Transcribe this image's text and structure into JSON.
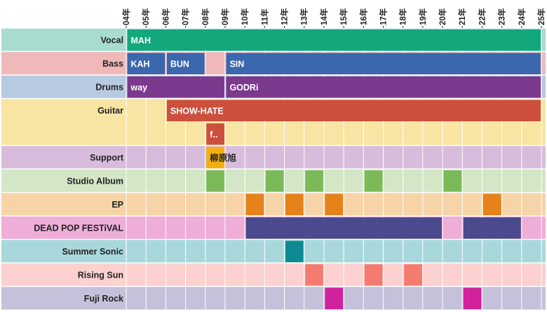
{
  "chart_data": {
    "type": "timeline",
    "title": "",
    "years": [
      "04年",
      "05年",
      "06年",
      "07年",
      "08年",
      "09年",
      "10年",
      "11年",
      "12年",
      "13年",
      "14年",
      "15年",
      "16年",
      "17年",
      "18年",
      "19年",
      "20年",
      "21年",
      "22年",
      "23年",
      "24年",
      "25年"
    ],
    "start_year": 2004,
    "end_year": 2025,
    "rows": [
      {
        "label": "Vocal",
        "bg": "#a8dcd0",
        "bars": [
          {
            "text": "MAH",
            "start": 2004.0,
            "end": 2025.0,
            "color": "#13a87c",
            "text_color": "#ffffff"
          }
        ]
      },
      {
        "label": "Bass",
        "bg": "#efb9b9",
        "bars": [
          {
            "text": "KAH",
            "start": 2004.0,
            "end": 2006.0,
            "color": "#3a67ad",
            "text_color": "#ffffff"
          },
          {
            "text": "BUN",
            "start": 2006.0,
            "end": 2008.0,
            "color": "#3a67ad",
            "text_color": "#ffffff"
          },
          {
            "text": "SIN",
            "start": 2009.0,
            "end": 2025.0,
            "color": "#3a67ad",
            "text_color": "#ffffff"
          }
        ]
      },
      {
        "label": "Drums",
        "bg": "#b8c9e2",
        "bars": [
          {
            "text": "way",
            "start": 2004.0,
            "end": 2009.0,
            "color": "#7b3a8e",
            "text_color": "#ffffff"
          },
          {
            "text": "GODRi",
            "start": 2009.0,
            "end": 2025.0,
            "color": "#7b3a8e",
            "text_color": "#ffffff"
          }
        ]
      },
      {
        "label": "Guitar",
        "bg": "#f8e4a3",
        "height_units": 2,
        "bars": [
          {
            "text": "SHOW-HATE",
            "start": 2006.0,
            "end": 2025.0,
            "color": "#cd4f3d",
            "text_color": "#ffffff",
            "sub": 0
          },
          {
            "text": "f..",
            "start": 2008.0,
            "end": 2009.0,
            "color": "#cd4f3d",
            "text_color": "#ffffff",
            "sub": 1
          }
        ]
      },
      {
        "label": "Support",
        "bg": "#d7bddb",
        "bars": [
          {
            "text": "柳原旭",
            "start": 2008.0,
            "end": 2009.0,
            "color": "#f2b10d",
            "text_color": "#222222"
          }
        ]
      },
      {
        "label": "Studio Album",
        "bg": "#d3e6c6",
        "bars": [
          {
            "text": "",
            "start": 2008.0,
            "end": 2009.0,
            "color": "#7cba59"
          },
          {
            "text": "",
            "start": 2011.0,
            "end": 2012.0,
            "color": "#7cba59"
          },
          {
            "text": "",
            "start": 2013.0,
            "end": 2014.0,
            "color": "#7cba59"
          },
          {
            "text": "",
            "start": 2016.0,
            "end": 2017.0,
            "color": "#7cba59"
          },
          {
            "text": "",
            "start": 2020.0,
            "end": 2021.0,
            "color": "#7cba59"
          }
        ]
      },
      {
        "label": "EP",
        "bg": "#f7d4a8",
        "bars": [
          {
            "text": "",
            "start": 2010.0,
            "end": 2011.0,
            "color": "#e6821a"
          },
          {
            "text": "",
            "start": 2012.0,
            "end": 2013.0,
            "color": "#e6821a"
          },
          {
            "text": "",
            "start": 2014.0,
            "end": 2015.0,
            "color": "#e6821a"
          },
          {
            "text": "",
            "start": 2022.0,
            "end": 2023.0,
            "color": "#e6821a"
          }
        ]
      },
      {
        "label": "DEAD POP FESTiVAL",
        "bg": "#eeaed8",
        "bars": [
          {
            "text": "",
            "start": 2010.0,
            "end": 2020.0,
            "color": "#4a4a8c"
          },
          {
            "text": "",
            "start": 2021.0,
            "end": 2024.0,
            "color": "#4a4a8c"
          }
        ]
      },
      {
        "label": "Summer Sonic",
        "bg": "#a9d8dc",
        "bars": [
          {
            "text": "",
            "start": 2012.0,
            "end": 2013.0,
            "color": "#0e8a93"
          }
        ]
      },
      {
        "label": "Rising Sun",
        "bg": "#fcd1cf",
        "bars": [
          {
            "text": "",
            "start": 2013.0,
            "end": 2014.0,
            "color": "#f57b70"
          },
          {
            "text": "",
            "start": 2016.0,
            "end": 2017.0,
            "color": "#f57b70"
          },
          {
            "text": "",
            "start": 2018.0,
            "end": 2019.0,
            "color": "#f57b70"
          }
        ]
      },
      {
        "label": "Fuji Rock",
        "bg": "#c6c1db",
        "bars": [
          {
            "text": "",
            "start": 2014.0,
            "end": 2015.0,
            "color": "#d1219c"
          },
          {
            "text": "",
            "start": 2021.0,
            "end": 2022.0,
            "color": "#d1219c"
          }
        ]
      }
    ]
  }
}
